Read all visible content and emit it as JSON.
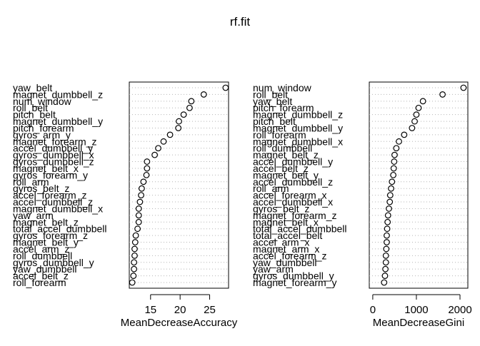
{
  "title": "rf.fit",
  "chart_data": [
    {
      "type": "scatter",
      "xlabel": "MeanDecreaseAccuracy",
      "ylabel": "",
      "xlim": [
        11.4,
        28.2
      ],
      "xticks": [
        15,
        20,
        25
      ],
      "grid": "dotted horizontal",
      "labels": [
        "yaw_belt",
        "magnet_dumbbell_z",
        "num_window",
        "roll_belt",
        "pitch_belt",
        "magnet_dumbbell_y",
        "pitch_forearm",
        "gyros_arm_y",
        "magnet_forearm_z",
        "accel_dumbbell_y",
        "gyros_dumbbell_x",
        "gyros_dumbbell_z",
        "magnet_belt_x",
        "gyros_forearm_y",
        "roll_arm",
        "gyros_belt_z",
        "accel_forearm_z",
        "accel_dumbbell_z",
        "magnet_dumbbell_x",
        "yaw_arm",
        "magnet_belt_z",
        "total_accel_dumbbell",
        "gyros_forearm_z",
        "magnet_belt_y",
        "accel_arm_z",
        "roll_dumbbell",
        "gyros_dumbbell_y",
        "yaw_dumbbell",
        "accel_belt_z",
        "roll_forearm"
      ],
      "values": [
        27.7,
        24.0,
        21.9,
        21.6,
        20.6,
        19.8,
        19.7,
        18.3,
        17.2,
        16.3,
        15.7,
        14.4,
        14.4,
        14.3,
        13.8,
        13.5,
        13.4,
        13.2,
        13.0,
        13.0,
        13.0,
        12.8,
        12.5,
        12.4,
        12.3,
        12.3,
        12.2,
        12.2,
        12.1,
        11.9
      ]
    },
    {
      "type": "scatter",
      "xlabel": "MeanDecreaseGini",
      "ylabel": "",
      "xlim": [
        -80,
        2180
      ],
      "xticks": [
        0,
        1000,
        2000
      ],
      "grid": "dotted horizontal",
      "labels": [
        "num_window",
        "roll_belt",
        "yaw_belt",
        "pitch_forearm",
        "magnet_dumbbell_z",
        "pitch_belt",
        "magnet_dumbbell_y",
        "roll_forearm",
        "magnet_dumbbell_x",
        "roll_dumbbell",
        "magnet_belt_z",
        "accel_dumbbell_y",
        "accel_belt_z",
        "magnet_belt_y",
        "accel_dumbbell_z",
        "roll_arm",
        "accel_forearm_x",
        "accel_dumbbell_x",
        "gyros_belt_z",
        "magnet_forearm_z",
        "magnet_belt_x",
        "total_accel_dumbbell",
        "total_accel_belt",
        "accel_arm_x",
        "magnet_arm_x",
        "accel_forearm_z",
        "yaw_dumbbell",
        "yaw_arm",
        "gyros_dumbbell_y",
        "magnet_forearm_y"
      ],
      "values": [
        2080,
        1600,
        1150,
        1050,
        1000,
        960,
        900,
        720,
        600,
        540,
        500,
        490,
        480,
        470,
        440,
        420,
        400,
        390,
        370,
        350,
        340,
        330,
        320,
        320,
        310,
        300,
        300,
        290,
        280,
        260
      ]
    }
  ]
}
